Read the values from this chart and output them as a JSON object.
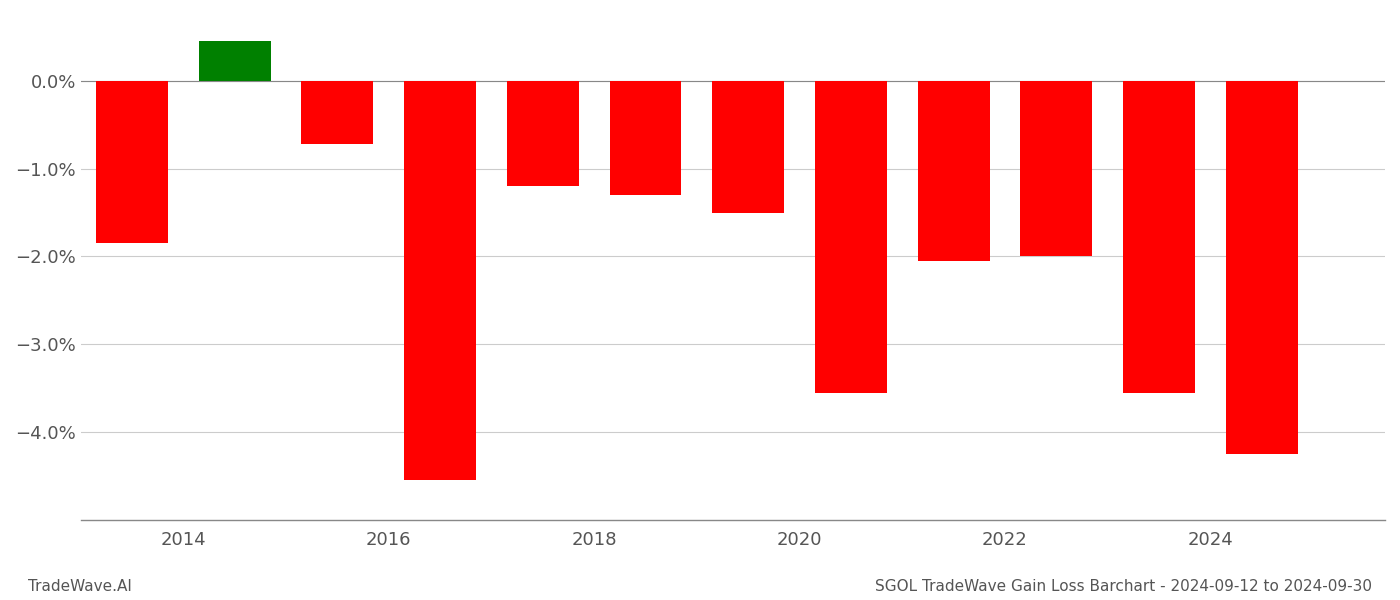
{
  "years": [
    2013,
    2014,
    2015,
    2016,
    2017,
    2018,
    2019,
    2020,
    2021,
    2022,
    2023,
    2024
  ],
  "values": [
    -1.85,
    0.45,
    -0.72,
    -4.55,
    -1.2,
    -1.3,
    -1.5,
    -3.55,
    -2.05,
    -2.0,
    -3.55,
    -4.25
  ],
  "colors": [
    "#ff0000",
    "#008000",
    "#ff0000",
    "#ff0000",
    "#ff0000",
    "#ff0000",
    "#ff0000",
    "#ff0000",
    "#ff0000",
    "#ff0000",
    "#ff0000",
    "#ff0000"
  ],
  "bar_width": 0.7,
  "ylim": [
    -5.0,
    0.75
  ],
  "yticks": [
    0.0,
    -1.0,
    -2.0,
    -3.0,
    -4.0
  ],
  "ytick_labels": [
    "0.0%",
    "−1.0%",
    "−2.0%",
    "−3.0%",
    "−4.0%"
  ],
  "xticks": [
    2013.5,
    2015.5,
    2017.5,
    2019.5,
    2021.5,
    2023.5
  ],
  "xtick_labels": [
    "2014",
    "2016",
    "2018",
    "2020",
    "2022",
    "2024"
  ],
  "xlim": [
    2012.5,
    2025.2
  ],
  "footer_left": "TradeWave.AI",
  "footer_right": "SGOL TradeWave Gain Loss Barchart - 2024-09-12 to 2024-09-30",
  "background_color": "#ffffff",
  "grid_color": "#cccccc",
  "axis_color": "#888888",
  "text_color": "#555555",
  "tick_fontsize": 13,
  "footer_fontsize": 11
}
